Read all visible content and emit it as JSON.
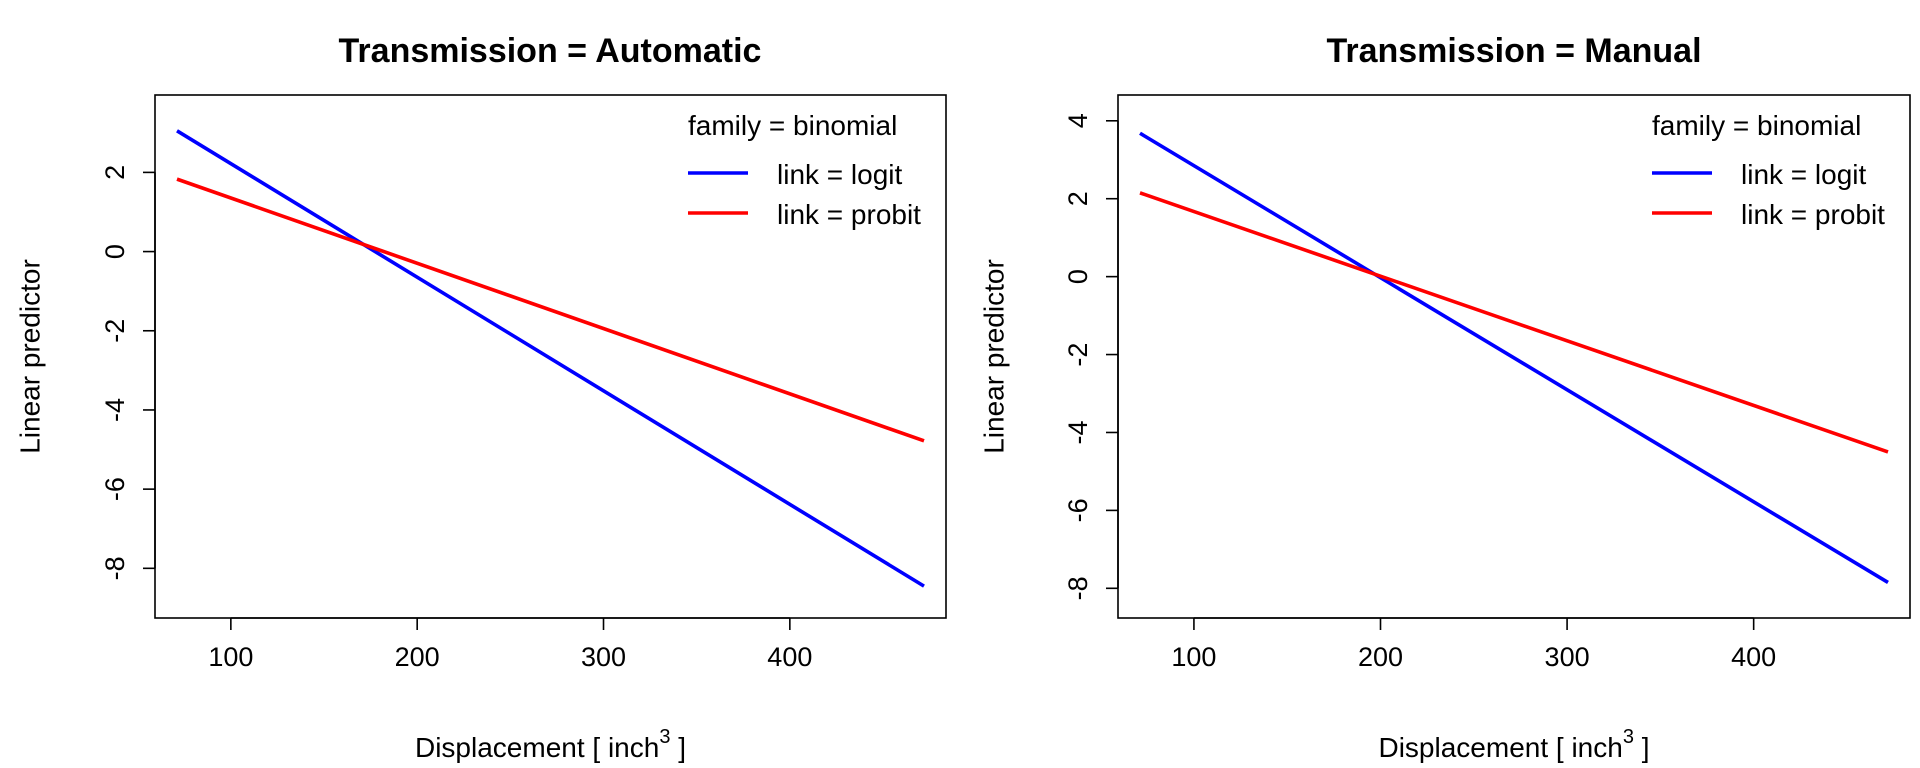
{
  "chart_data": [
    {
      "type": "line",
      "title": "Transmission = Automatic",
      "xlabel": "Displacement [ inch",
      "xlabel_superscript": "3",
      "xlabel_suffix": " ]",
      "ylabel": "Linear predictor",
      "xlim": [
        71.1,
        472
      ],
      "ylim": [
        -8.8,
        3.5
      ],
      "xticks": [
        100,
        200,
        300,
        400
      ],
      "yticks": [
        2,
        0,
        -2,
        -4,
        -6,
        -8
      ],
      "xtick_labels": [
        "100",
        "200",
        "300",
        "400"
      ],
      "ytick_labels": [
        "2",
        "0",
        "-2",
        "-4",
        "-6",
        "-8"
      ],
      "grid": false,
      "legend": {
        "title": "family = binomial",
        "position": "top-right"
      },
      "series": [
        {
          "name": "link = logit",
          "color": "#0000ff",
          "x": [
            71.1,
            472
          ],
          "y": [
            3.05,
            -8.45
          ]
        },
        {
          "name": "link = probit",
          "color": "#ff0000",
          "x": [
            71.1,
            472
          ],
          "y": [
            1.83,
            -4.78
          ]
        }
      ]
    },
    {
      "type": "line",
      "title": "Transmission = Manual",
      "xlabel": "Displacement [ inch",
      "xlabel_superscript": "3",
      "xlabel_suffix": " ]",
      "ylabel": "Linear predictor",
      "xlim": [
        71.1,
        472
      ],
      "ylim": [
        -8.3,
        4.2
      ],
      "xticks": [
        100,
        200,
        300,
        400
      ],
      "yticks": [
        4,
        2,
        0,
        -2,
        -4,
        -6,
        -8
      ],
      "xtick_labels": [
        "100",
        "200",
        "300",
        "400"
      ],
      "ytick_labels": [
        "4",
        "2",
        "0",
        "-2",
        "-4",
        "-6",
        "-8"
      ],
      "grid": false,
      "legend": {
        "title": "family = binomial",
        "position": "top-right"
      },
      "series": [
        {
          "name": "link = logit",
          "color": "#0000ff",
          "x": [
            71.1,
            472
          ],
          "y": [
            3.68,
            -7.85
          ]
        },
        {
          "name": "link = probit",
          "color": "#ff0000",
          "x": [
            71.1,
            472
          ],
          "y": [
            2.15,
            -4.5
          ]
        }
      ]
    }
  ]
}
